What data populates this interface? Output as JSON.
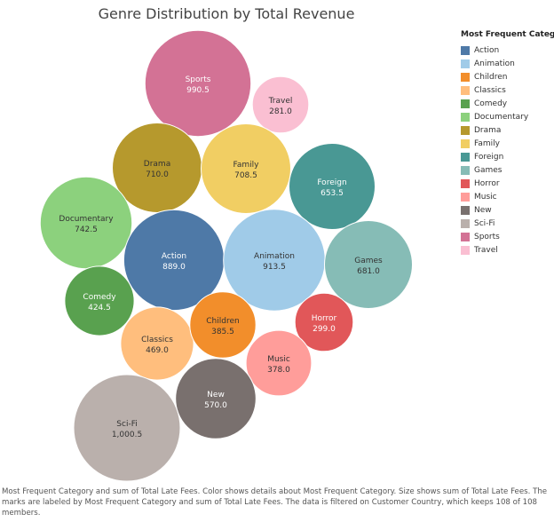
{
  "chart_data": {
    "type": "bubble",
    "title": "Genre Distribution by Total Revenue",
    "legend_title": "Most Frequent Category",
    "legend_placement": "right",
    "bubbles": [
      {
        "name": "Sports",
        "value": 990.5,
        "label": "990.5",
        "color": "#d37295"
      },
      {
        "name": "Travel",
        "value": 281.0,
        "label": "281.0",
        "color": "#fabfd2"
      },
      {
        "name": "Drama",
        "value": 710.0,
        "label": "710.0",
        "color": "#b6992d"
      },
      {
        "name": "Family",
        "value": 708.5,
        "label": "708.5",
        "color": "#f1ce63"
      },
      {
        "name": "Foreign",
        "value": 653.5,
        "label": "653.5",
        "color": "#499894"
      },
      {
        "name": "Documentary",
        "value": 742.5,
        "label": "742.5",
        "color": "#8cd17d"
      },
      {
        "name": "Action",
        "value": 889.0,
        "label": "889.0",
        "color": "#4e79a7"
      },
      {
        "name": "Animation",
        "value": 913.5,
        "label": "913.5",
        "color": "#a0cbe8"
      },
      {
        "name": "Games",
        "value": 681.0,
        "label": "681.0",
        "color": "#86bcb6"
      },
      {
        "name": "Comedy",
        "value": 424.5,
        "label": "424.5",
        "color": "#59a14f"
      },
      {
        "name": "Horror",
        "value": 299.0,
        "label": "299.0",
        "color": "#e15759"
      },
      {
        "name": "Classics",
        "value": 469.0,
        "label": "469.0",
        "color": "#ffbe7d"
      },
      {
        "name": "Children",
        "value": 385.5,
        "label": "385.5",
        "color": "#f28e2b"
      },
      {
        "name": "Music",
        "value": 378.0,
        "label": "378.0",
        "color": "#ff9d9a"
      },
      {
        "name": "New",
        "value": 570.0,
        "label": "570.0",
        "color": "#79706e"
      },
      {
        "name": "Sci-Fi",
        "value": 1000.5,
        "label": "1,000.5",
        "color": "#bab0ac"
      }
    ],
    "legend": [
      {
        "name": "Action",
        "color": "#4e79a7"
      },
      {
        "name": "Animation",
        "color": "#a0cbe8"
      },
      {
        "name": "Children",
        "color": "#f28e2b"
      },
      {
        "name": "Classics",
        "color": "#ffbe7d"
      },
      {
        "name": "Comedy",
        "color": "#59a14f"
      },
      {
        "name": "Documentary",
        "color": "#8cd17d"
      },
      {
        "name": "Drama",
        "color": "#b6992d"
      },
      {
        "name": "Family",
        "color": "#f1ce63"
      },
      {
        "name": "Foreign",
        "color": "#499894"
      },
      {
        "name": "Games",
        "color": "#86bcb6"
      },
      {
        "name": "Horror",
        "color": "#e15759"
      },
      {
        "name": "Music",
        "color": "#ff9d9a"
      },
      {
        "name": "New",
        "color": "#79706e"
      },
      {
        "name": "Sci-Fi",
        "color": "#bab0ac"
      },
      {
        "name": "Sports",
        "color": "#d37295"
      },
      {
        "name": "Travel",
        "color": "#fabfd2"
      }
    ],
    "caption": "Most Frequent Category and sum of Total Late Fees.  Color shows details about Most Frequent Category.  Size shows sum of Total Late Fees.  The marks are labeled by Most Frequent Category and sum of Total Late Fees. The data is filtered on Customer Country, which keeps 108 of 108 members."
  }
}
